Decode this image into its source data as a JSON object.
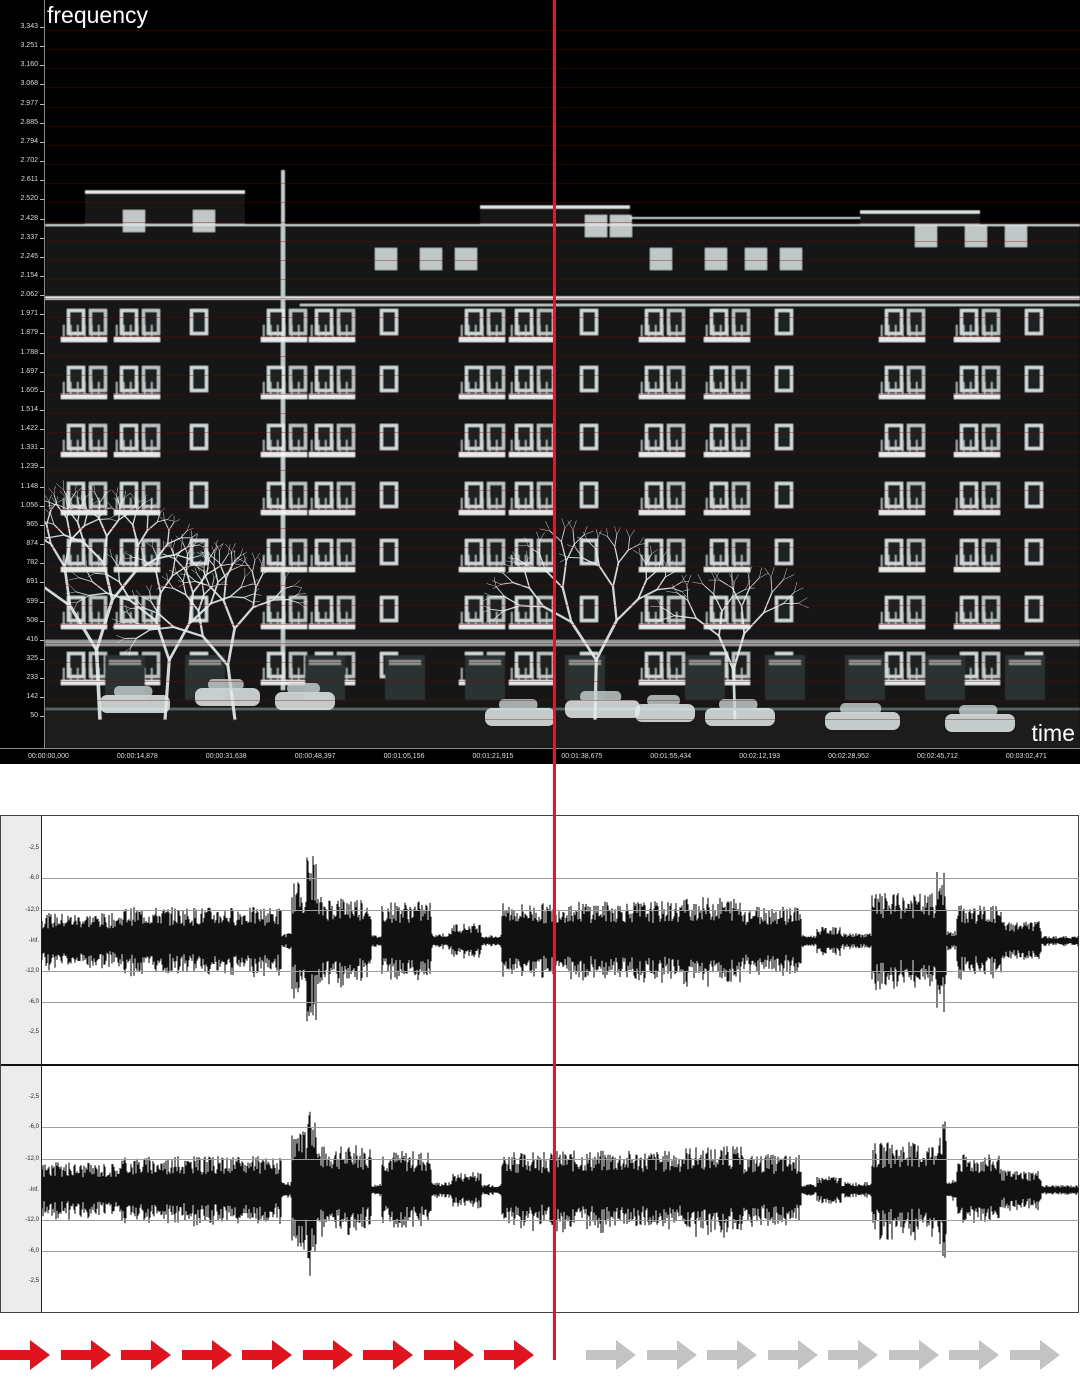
{
  "spectrogram": {
    "label_frequency": "frequency",
    "label_time": "time",
    "frequency_ticks": [
      "3.343",
      "3.251",
      "3.160",
      "3.068",
      "2.977",
      "2.885",
      "2.794",
      "2.702",
      "2.611",
      "2.520",
      "2.428",
      "2.337",
      "2.245",
      "2.154",
      "2.062",
      "1.971",
      "1.879",
      "1.788",
      "1.697",
      "1.605",
      "1.514",
      "1.422",
      "1.331",
      "1.239",
      "1.148",
      "1.056",
      "965",
      "874",
      "782",
      "691",
      "599",
      "508",
      "416",
      "325",
      "233",
      "142",
      "50"
    ],
    "time_ticks": [
      "00:00:00,000",
      "00:00:14,878",
      "00:00:31,638",
      "00:00:48,397",
      "00:01:05,156",
      "00:01:21,915",
      "00:01:38,675",
      "00:01:55,434",
      "00:02:12,193",
      "00:02:28,952",
      "00:02:45,712",
      "00:03:02,471"
    ]
  },
  "waveform": {
    "db_ticks": [
      "-2,5",
      "-6,0",
      "-12,0",
      "-Inf.",
      "-12,0",
      "-6,0",
      "-2,5"
    ]
  },
  "colors": {
    "playhead": "#d0202e",
    "arrow_played": "#e0141e",
    "arrow_pending": "#c3c3c3"
  },
  "progress": {
    "played_arrows": 9,
    "pending_arrows": 8
  }
}
